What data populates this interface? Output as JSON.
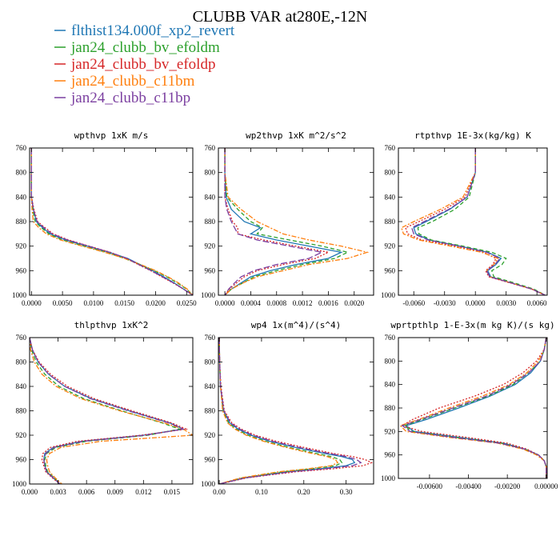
{
  "figure": {
    "title": "CLUBB VAR at280E,-12N"
  },
  "legend": [
    {
      "name": "flthist134.000f_xp2_revert",
      "color": "#1f77b4",
      "dash": "solid"
    },
    {
      "name": "jan24_clubb_bv_efoldm",
      "color": "#2ca02c",
      "dash": "dash"
    },
    {
      "name": "jan24_clubb_bv_efoldp",
      "color": "#d62728",
      "dash": "dot"
    },
    {
      "name": "jan24_clubb_c11bm",
      "color": "#ff7f0e",
      "dash": "dashdot"
    },
    {
      "name": "jan24_clubb_c11bp",
      "color": "#7b3fa0",
      "dash": "longdash"
    }
  ],
  "chart_data": [
    {
      "type": "line",
      "title": "wpthvp  1xK m/s",
      "xlim": [
        -0.0003,
        0.026
      ],
      "ylim": [
        760,
        1000
      ],
      "xticks": [
        "0.0000",
        "0.0050",
        "0.0100",
        "0.0150",
        "0.0200",
        "0.0250"
      ],
      "xtick_values": [
        0,
        0.005,
        0.01,
        0.015,
        0.02,
        0.025
      ],
      "yticks": [
        760,
        800,
        840,
        880,
        920,
        960,
        1000
      ],
      "y": [
        760,
        800,
        840,
        860,
        880,
        890,
        900,
        910,
        920,
        930,
        940,
        950,
        960,
        970,
        980,
        990,
        1000
      ],
      "series": [
        {
          "name": "flthist134.000f_xp2_revert",
          "values": [
            0,
            0,
            0,
            0.0003,
            0.0008,
            0.0018,
            0.003,
            0.0055,
            0.009,
            0.0125,
            0.0155,
            0.0175,
            0.0195,
            0.0213,
            0.023,
            0.0245,
            0.026
          ]
        },
        {
          "name": "jan24_clubb_bv_efoldm",
          "values": [
            0,
            0,
            0,
            0.0002,
            0.0006,
            0.0016,
            0.0028,
            0.005,
            0.0085,
            0.012,
            0.015,
            0.0175,
            0.0198,
            0.0218,
            0.0235,
            0.025,
            0.026
          ]
        },
        {
          "name": "jan24_clubb_bv_efoldp",
          "values": [
            0,
            0,
            0,
            0.0004,
            0.001,
            0.0022,
            0.0035,
            0.006,
            0.0093,
            0.0127,
            0.0153,
            0.0172,
            0.0192,
            0.021,
            0.0228,
            0.0245,
            0.026
          ]
        },
        {
          "name": "jan24_clubb_c11bm",
          "values": [
            0,
            0,
            0,
            0.0001,
            0.0003,
            0.0012,
            0.0024,
            0.0047,
            0.0082,
            0.0118,
            0.015,
            0.0176,
            0.02,
            0.022,
            0.0237,
            0.0251,
            0.026
          ]
        },
        {
          "name": "jan24_clubb_c11bp",
          "values": [
            0,
            0,
            0,
            0.0003,
            0.0009,
            0.002,
            0.0033,
            0.0058,
            0.0092,
            0.0126,
            0.0154,
            0.0173,
            0.0193,
            0.0211,
            0.0229,
            0.0245,
            0.026
          ]
        }
      ]
    },
    {
      "type": "line",
      "title": "wp2thvp  1xK m^2/s^2",
      "xlim": [
        -0.0001,
        0.0023
      ],
      "ylim": [
        760,
        1000
      ],
      "xticks": [
        "0.0000",
        "0.0004",
        "0.0008",
        "0.0012",
        "0.0016",
        "0.0020"
      ],
      "xtick_values": [
        0,
        0.0004,
        0.0008,
        0.0012,
        0.0016,
        0.002
      ],
      "yticks": [
        760,
        800,
        840,
        880,
        920,
        960,
        1000
      ],
      "y": [
        760,
        800,
        840,
        860,
        880,
        890,
        900,
        910,
        920,
        930,
        940,
        950,
        960,
        970,
        980,
        990,
        1000
      ],
      "series": [
        {
          "name": "flthist134.000f_xp2_revert",
          "values": [
            0,
            0,
            2e-05,
            0.0001,
            0.0003,
            0.00055,
            0.0004,
            0.0008,
            0.0013,
            0.0018,
            0.0016,
            0.0011,
            0.0007,
            0.0004,
            0.00025,
            0.0001,
            0
          ]
        },
        {
          "name": "jan24_clubb_bv_efoldm",
          "values": [
            0,
            0,
            3e-05,
            0.0002,
            0.0004,
            0.00058,
            0.0005,
            0.001,
            0.0015,
            0.0019,
            0.0017,
            0.0012,
            0.0008,
            0.00045,
            0.00028,
            0.0001,
            0
          ]
        },
        {
          "name": "jan24_clubb_bv_efoldp",
          "values": [
            0,
            0,
            0,
            5e-05,
            0.00012,
            0.0002,
            0.0002,
            0.0006,
            0.0011,
            0.0016,
            0.0014,
            0.0009,
            0.0005,
            0.0003,
            0.00018,
            7e-05,
            0
          ]
        },
        {
          "name": "jan24_clubb_c11bm",
          "values": [
            0,
            0,
            5e-05,
            0.00025,
            0.0005,
            0.0007,
            0.0009,
            0.0013,
            0.0018,
            0.0022,
            0.0019,
            0.0013,
            0.0009,
            0.0005,
            0.00028,
            0.0001,
            0
          ]
        },
        {
          "name": "jan24_clubb_c11bp",
          "values": [
            0,
            0,
            0,
            3e-05,
            0.0001,
            0.00015,
            0.0002,
            0.0005,
            0.001,
            0.0015,
            0.0013,
            0.0008,
            0.00045,
            0.00025,
            0.00015,
            6e-05,
            0
          ]
        }
      ]
    },
    {
      "type": "line",
      "title": "rtpthvp  1E-3x(kg/kg) K",
      "xlim": [
        -0.0075,
        0.007
      ],
      "ylim": [
        760,
        1000
      ],
      "xticks": [
        "-0.0060",
        "-0.0030",
        "0.0000",
        "0.0030",
        "0.0060"
      ],
      "xtick_values": [
        -0.006,
        -0.003,
        0,
        0.003,
        0.006
      ],
      "yticks": [
        760,
        800,
        840,
        880,
        920,
        960,
        1000
      ],
      "y": [
        760,
        800,
        840,
        860,
        880,
        890,
        900,
        910,
        920,
        930,
        940,
        950,
        960,
        970,
        980,
        990,
        1000
      ],
      "series": [
        {
          "name": "flthist134.000f_xp2_revert",
          "values": [
            0,
            0,
            -0.0008,
            -0.0025,
            -0.0048,
            -0.006,
            -0.0058,
            -0.0045,
            -0.0015,
            0.0012,
            0.0025,
            0.002,
            0.0012,
            0.0015,
            0.0035,
            0.0055,
            0.0068
          ]
        },
        {
          "name": "jan24_clubb_bv_efoldm",
          "values": [
            0,
            0,
            -0.0006,
            -0.002,
            -0.0042,
            -0.0056,
            -0.0055,
            -0.0043,
            -0.0012,
            0.0016,
            0.003,
            0.0026,
            0.0016,
            0.0018,
            0.0038,
            0.0057,
            0.0068
          ]
        },
        {
          "name": "jan24_clubb_bv_efoldp",
          "values": [
            0,
            0,
            -0.001,
            -0.003,
            -0.0055,
            -0.0068,
            -0.0066,
            -0.0052,
            -0.002,
            0.0008,
            0.002,
            0.0017,
            0.001,
            0.0013,
            0.0034,
            0.0055,
            0.0068
          ]
        },
        {
          "name": "jan24_clubb_c11bm",
          "values": [
            0,
            0,
            -0.0012,
            -0.0034,
            -0.006,
            -0.0072,
            -0.007,
            -0.0055,
            -0.0024,
            0.0006,
            0.0022,
            0.0018,
            0.0011,
            0.0014,
            0.0035,
            0.0055,
            0.0068
          ]
        },
        {
          "name": "jan24_clubb_c11bp",
          "values": [
            0,
            0,
            -0.0008,
            -0.0026,
            -0.005,
            -0.0062,
            -0.006,
            -0.0046,
            -0.0016,
            0.0011,
            0.0024,
            0.0019,
            0.0011,
            0.0014,
            0.0035,
            0.0055,
            0.0068
          ]
        }
      ]
    },
    {
      "type": "line",
      "title": "thlpthvp  1xK^2",
      "xlim": [
        0,
        0.0172
      ],
      "ylim": [
        760,
        1000
      ],
      "xticks": [
        "0.000",
        "0.003",
        "0.006",
        "0.009",
        "0.012",
        "0.015"
      ],
      "xtick_values": [
        0,
        0.003,
        0.006,
        0.009,
        0.012,
        0.015
      ],
      "yticks": [
        760,
        800,
        840,
        880,
        920,
        960,
        1000
      ],
      "y": [
        760,
        780,
        800,
        820,
        840,
        860,
        880,
        900,
        910,
        920,
        930,
        940,
        950,
        960,
        970,
        980,
        990,
        1000
      ],
      "series": [
        {
          "name": "flthist134.000f_xp2_revert",
          "values": [
            0,
            0.0003,
            0.0009,
            0.002,
            0.0037,
            0.0065,
            0.0105,
            0.0148,
            0.0162,
            0.012,
            0.0055,
            0.0025,
            0.0016,
            0.0015,
            0.0016,
            0.0018,
            0.0025,
            0.0032
          ]
        },
        {
          "name": "jan24_clubb_bv_efoldm",
          "values": [
            0,
            0.0002,
            0.0007,
            0.0016,
            0.0031,
            0.0057,
            0.0097,
            0.014,
            0.0158,
            0.0125,
            0.006,
            0.0028,
            0.0018,
            0.0016,
            0.0017,
            0.0019,
            0.0026,
            0.0032
          ]
        },
        {
          "name": "jan24_clubb_bv_efoldp",
          "values": [
            0,
            0.0003,
            0.001,
            0.0022,
            0.004,
            0.0068,
            0.0108,
            0.015,
            0.0165,
            0.0118,
            0.005,
            0.0022,
            0.0014,
            0.0013,
            0.0015,
            0.0017,
            0.0024,
            0.0032
          ]
        },
        {
          "name": "jan24_clubb_c11bm",
          "values": [
            0,
            0.0001,
            0.0005,
            0.0013,
            0.0028,
            0.0054,
            0.0095,
            0.0142,
            0.0162,
            0.0172,
            0.0075,
            0.0033,
            0.0021,
            0.0018,
            0.0019,
            0.0021,
            0.0027,
            0.0034
          ]
        },
        {
          "name": "jan24_clubb_c11bp",
          "values": [
            0,
            0.0003,
            0.0009,
            0.002,
            0.0037,
            0.0064,
            0.0104,
            0.0147,
            0.0162,
            0.0122,
            0.0057,
            0.0026,
            0.0017,
            0.0015,
            0.0016,
            0.0018,
            0.0025,
            0.0032
          ]
        }
      ]
    },
    {
      "type": "line",
      "title": "wp4  1x(m^4)/(s^4)",
      "xlim": [
        -0.002,
        0.365
      ],
      "ylim": [
        760,
        1000
      ],
      "xticks": [
        "0.00",
        "0.10",
        "0.20",
        "0.30"
      ],
      "xtick_values": [
        0,
        0.1,
        0.2,
        0.3
      ],
      "yticks": [
        760,
        800,
        840,
        880,
        920,
        960,
        1000
      ],
      "y": [
        760,
        800,
        840,
        880,
        900,
        910,
        920,
        930,
        940,
        950,
        955,
        960,
        965,
        970,
        975,
        980,
        990,
        1000
      ],
      "series": [
        {
          "name": "flthist134.000f_xp2_revert",
          "values": [
            0,
            0.001,
            0.003,
            0.01,
            0.025,
            0.045,
            0.075,
            0.12,
            0.18,
            0.25,
            0.29,
            0.315,
            0.32,
            0.3,
            0.24,
            0.16,
            0.06,
            0
          ]
        },
        {
          "name": "jan24_clubb_bv_efoldm",
          "values": [
            0,
            0.001,
            0.003,
            0.009,
            0.022,
            0.04,
            0.068,
            0.11,
            0.165,
            0.23,
            0.265,
            0.285,
            0.29,
            0.275,
            0.22,
            0.15,
            0.055,
            0
          ]
        },
        {
          "name": "jan24_clubb_bv_efoldp",
          "values": [
            0,
            0.001,
            0.004,
            0.012,
            0.03,
            0.052,
            0.085,
            0.135,
            0.2,
            0.27,
            0.315,
            0.345,
            0.36,
            0.34,
            0.27,
            0.18,
            0.065,
            0
          ]
        },
        {
          "name": "jan24_clubb_c11bm",
          "values": [
            0,
            0.001,
            0.003,
            0.008,
            0.02,
            0.037,
            0.064,
            0.105,
            0.158,
            0.22,
            0.255,
            0.275,
            0.28,
            0.265,
            0.21,
            0.14,
            0.05,
            0
          ]
        },
        {
          "name": "jan24_clubb_c11bp",
          "values": [
            0,
            0.001,
            0.003,
            0.011,
            0.027,
            0.048,
            0.079,
            0.126,
            0.188,
            0.26,
            0.3,
            0.325,
            0.335,
            0.315,
            0.25,
            0.17,
            0.062,
            0
          ]
        }
      ]
    },
    {
      "type": "line",
      "title": "wprtpthlp  1-E-3x(m kg K)/(s kg)",
      "xlim": [
        -0.0076,
        5e-05
      ],
      "ylim": [
        760,
        1000
      ],
      "xticks": [
        "-0.00600",
        "-0.00400",
        "-0.00200",
        "0.00000"
      ],
      "xtick_values": [
        -0.006,
        -0.004,
        -0.002,
        0
      ],
      "yticks": [
        760,
        800,
        840,
        880,
        920,
        960,
        1000
      ],
      "y": [
        760,
        780,
        800,
        820,
        840,
        860,
        880,
        900,
        910,
        920,
        930,
        940,
        950,
        960,
        970,
        980,
        990,
        1000
      ],
      "series": [
        {
          "name": "flthist134.000f_xp2_revert",
          "values": [
            0,
            -0.0001,
            -0.0003,
            -0.0008,
            -0.0016,
            -0.0029,
            -0.0045,
            -0.0062,
            -0.0072,
            -0.0068,
            -0.0045,
            -0.0022,
            -0.0011,
            -0.0004,
            -0.0001,
            0,
            0,
            0
          ]
        },
        {
          "name": "jan24_clubb_bv_efoldm",
          "values": [
            0,
            -0.0001,
            -0.0003,
            -0.0009,
            -0.0017,
            -0.003,
            -0.0047,
            -0.0064,
            -0.0073,
            -0.0069,
            -0.0047,
            -0.0023,
            -0.0011,
            -0.0004,
            -0.0001,
            0,
            0,
            0
          ]
        },
        {
          "name": "jan24_clubb_bv_efoldp",
          "values": [
            0,
            -0.0001,
            -0.0005,
            -0.0012,
            -0.0022,
            -0.0037,
            -0.0055,
            -0.0069,
            -0.0074,
            -0.0064,
            -0.0041,
            -0.002,
            -0.001,
            -0.0004,
            -0.0001,
            0,
            0,
            0
          ]
        },
        {
          "name": "jan24_clubb_c11bm",
          "values": [
            0,
            -0.0001,
            -0.0004,
            -0.001,
            -0.0019,
            -0.0033,
            -0.005,
            -0.0066,
            -0.0075,
            -0.0072,
            -0.005,
            -0.0025,
            -0.0012,
            -0.0005,
            -0.0001,
            0,
            0,
            0
          ]
        },
        {
          "name": "jan24_clubb_c11bp",
          "values": [
            0,
            -0.0001,
            -0.0003,
            -0.0009,
            -0.0018,
            -0.0031,
            -0.0048,
            -0.0065,
            -0.0074,
            -0.007,
            -0.0048,
            -0.0024,
            -0.0011,
            -0.0004,
            -0.0001,
            0,
            0,
            0
          ]
        }
      ]
    }
  ]
}
